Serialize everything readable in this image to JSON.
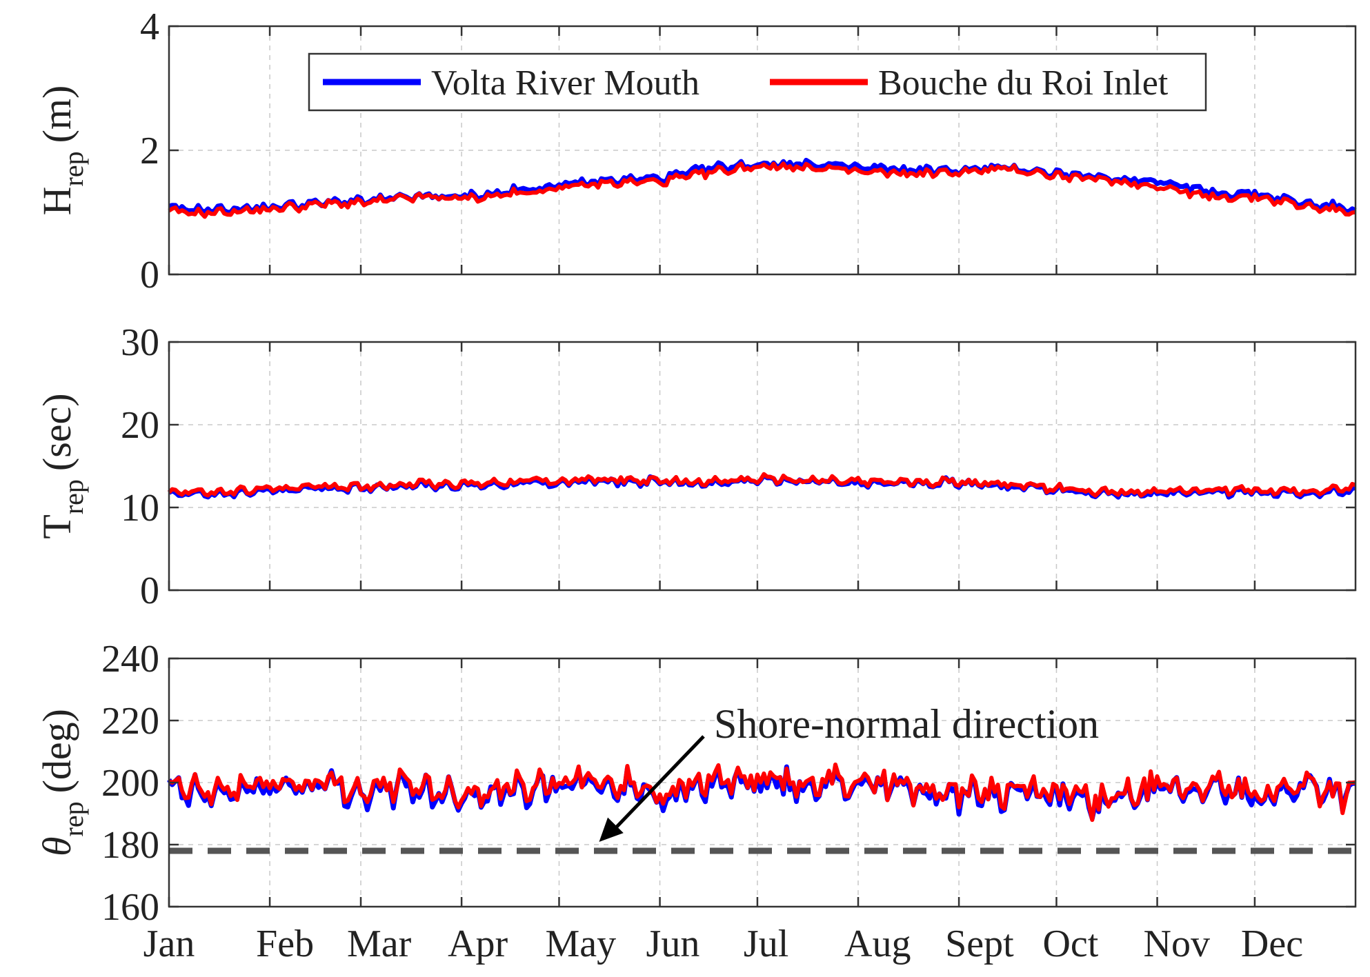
{
  "chart_data": [
    {
      "type": "line",
      "panel": "wave-height",
      "ylabel": "H",
      "ylabel_sub": "rep",
      "ylabel_unit": "(m)",
      "ylim": [
        0,
        4
      ],
      "yticks": [
        "0",
        "2",
        "4"
      ],
      "grid": true,
      "legend": {
        "placement": "top-center",
        "entries": [
          {
            "name": "Volta River Mouth",
            "color": "#0000ff"
          },
          {
            "name": "Bouche du Roi Inlet",
            "color": "#ff0000"
          }
        ]
      },
      "x_months": [
        "Jan",
        "Feb",
        "Mar",
        "Apr",
        "May",
        "Jun",
        "Jul",
        "Aug",
        "Sept",
        "Oct",
        "Nov",
        "Dec"
      ],
      "series": [
        {
          "name": "Volta River Mouth",
          "color": "#0000ff",
          "x": [
            0,
            0.5,
            1,
            1.5,
            2,
            2.5,
            3,
            3.5,
            4,
            4.5,
            5,
            5.5,
            6,
            6.5,
            7,
            7.5,
            8,
            8.5,
            9,
            9.5,
            10,
            10.5,
            11,
            11.5,
            12
          ],
          "y": [
            1.05,
            1.05,
            1.08,
            1.15,
            1.18,
            1.25,
            1.25,
            1.35,
            1.45,
            1.52,
            1.55,
            1.72,
            1.78,
            1.78,
            1.72,
            1.68,
            1.68,
            1.72,
            1.62,
            1.55,
            1.52,
            1.32,
            1.3,
            1.15,
            1.05
          ]
        },
        {
          "name": "Bouche du Roi Inlet",
          "color": "#ff0000",
          "x": [
            0,
            0.5,
            1,
            1.5,
            2,
            2.5,
            3,
            3.5,
            4,
            4.5,
            5,
            5.5,
            6,
            6.5,
            7,
            7.5,
            8,
            8.5,
            9,
            9.5,
            10,
            10.5,
            11,
            11.5,
            12
          ],
          "y": [
            1.0,
            1.0,
            1.05,
            1.13,
            1.15,
            1.25,
            1.22,
            1.3,
            1.4,
            1.48,
            1.5,
            1.65,
            1.75,
            1.72,
            1.65,
            1.62,
            1.65,
            1.7,
            1.58,
            1.52,
            1.42,
            1.25,
            1.25,
            1.1,
            1.0
          ]
        }
      ]
    },
    {
      "type": "line",
      "panel": "wave-period",
      "ylabel": "T",
      "ylabel_sub": "rep",
      "ylabel_unit": "(sec)",
      "ylim": [
        0,
        30
      ],
      "yticks": [
        "0",
        "10",
        "20",
        "30"
      ],
      "grid": true,
      "x_months": [
        "Jan",
        "Feb",
        "Mar",
        "Apr",
        "May",
        "Jun",
        "Jul",
        "Aug",
        "Sept",
        "Oct",
        "Nov",
        "Dec"
      ],
      "series": [
        {
          "name": "Volta River Mouth",
          "color": "#0000ff",
          "x": [
            0,
            0.5,
            1,
            1.5,
            2,
            2.5,
            3,
            3.5,
            4,
            4.5,
            5,
            5.5,
            6,
            6.5,
            7,
            7.5,
            8,
            8.5,
            9,
            9.5,
            10,
            10.5,
            11,
            11.5,
            12
          ],
          "y": [
            11.8,
            11.6,
            12.0,
            12.4,
            12.4,
            12.8,
            12.6,
            13.0,
            13.0,
            13.2,
            13.0,
            13.0,
            13.3,
            13.2,
            12.8,
            13.0,
            13.0,
            12.6,
            12.2,
            11.6,
            11.8,
            12.0,
            11.8,
            11.8,
            11.8
          ]
        },
        {
          "name": "Bouche du Roi Inlet",
          "color": "#ff0000",
          "x": [
            0,
            0.5,
            1,
            1.5,
            2,
            2.5,
            3,
            3.5,
            4,
            4.5,
            5,
            5.5,
            6,
            6.5,
            7,
            7.5,
            8,
            8.5,
            9,
            9.5,
            10,
            10.5,
            11,
            11.5,
            12
          ],
          "y": [
            12.0,
            11.8,
            12.2,
            12.6,
            12.5,
            13.0,
            12.8,
            13.2,
            13.2,
            13.4,
            13.1,
            13.2,
            13.4,
            13.3,
            13.0,
            13.1,
            13.1,
            12.8,
            12.4,
            11.8,
            12.0,
            12.2,
            12.0,
            12.0,
            12.2
          ]
        }
      ]
    },
    {
      "type": "line",
      "panel": "wave-direction",
      "ylabel": "θ",
      "ylabel_sub": "rep",
      "ylabel_unit": "(deg)",
      "ylim": [
        160,
        240
      ],
      "yticks": [
        "160",
        "180",
        "200",
        "220",
        "240"
      ],
      "grid": true,
      "reference_line": {
        "y": 178,
        "color": "#555555",
        "style": "dashed"
      },
      "annotation": {
        "text": "Shore-normal direction",
        "arrow_target": [
          4.35,
          180
        ]
      },
      "x_months": [
        "Jan",
        "Feb",
        "Mar",
        "Apr",
        "May",
        "Jun",
        "Jul",
        "Aug",
        "Sept",
        "Oct",
        "Nov",
        "Dec"
      ],
      "series": [
        {
          "name": "Volta River Mouth",
          "color": "#0000ff",
          "x": [
            0,
            0.5,
            1,
            1.5,
            2,
            2.5,
            3,
            3.5,
            4,
            4.5,
            5,
            5.5,
            6,
            6.5,
            7,
            7.5,
            8,
            8.5,
            9,
            9.5,
            10,
            10.5,
            11,
            11.5,
            12
          ],
          "y": [
            197,
            196,
            199,
            199,
            197,
            198,
            196,
            198,
            199,
            199,
            196,
            200,
            199,
            198,
            200,
            198,
            196,
            197,
            195,
            193,
            197,
            198,
            195,
            199,
            195
          ]
        },
        {
          "name": "Bouche du Roi Inlet",
          "color": "#ff0000",
          "x": [
            0,
            0.5,
            1,
            1.5,
            2,
            2.5,
            3,
            3.5,
            4,
            4.5,
            5,
            5.5,
            6,
            6.5,
            7,
            7.5,
            8,
            8.5,
            9,
            9.5,
            10,
            10.5,
            11,
            11.5,
            12
          ],
          "y": [
            198,
            197,
            200,
            200,
            198,
            199,
            197,
            199,
            200,
            200,
            197,
            201,
            200,
            199,
            201,
            199,
            197,
            198,
            196,
            194,
            198,
            199,
            196,
            200,
            196
          ]
        }
      ]
    }
  ]
}
